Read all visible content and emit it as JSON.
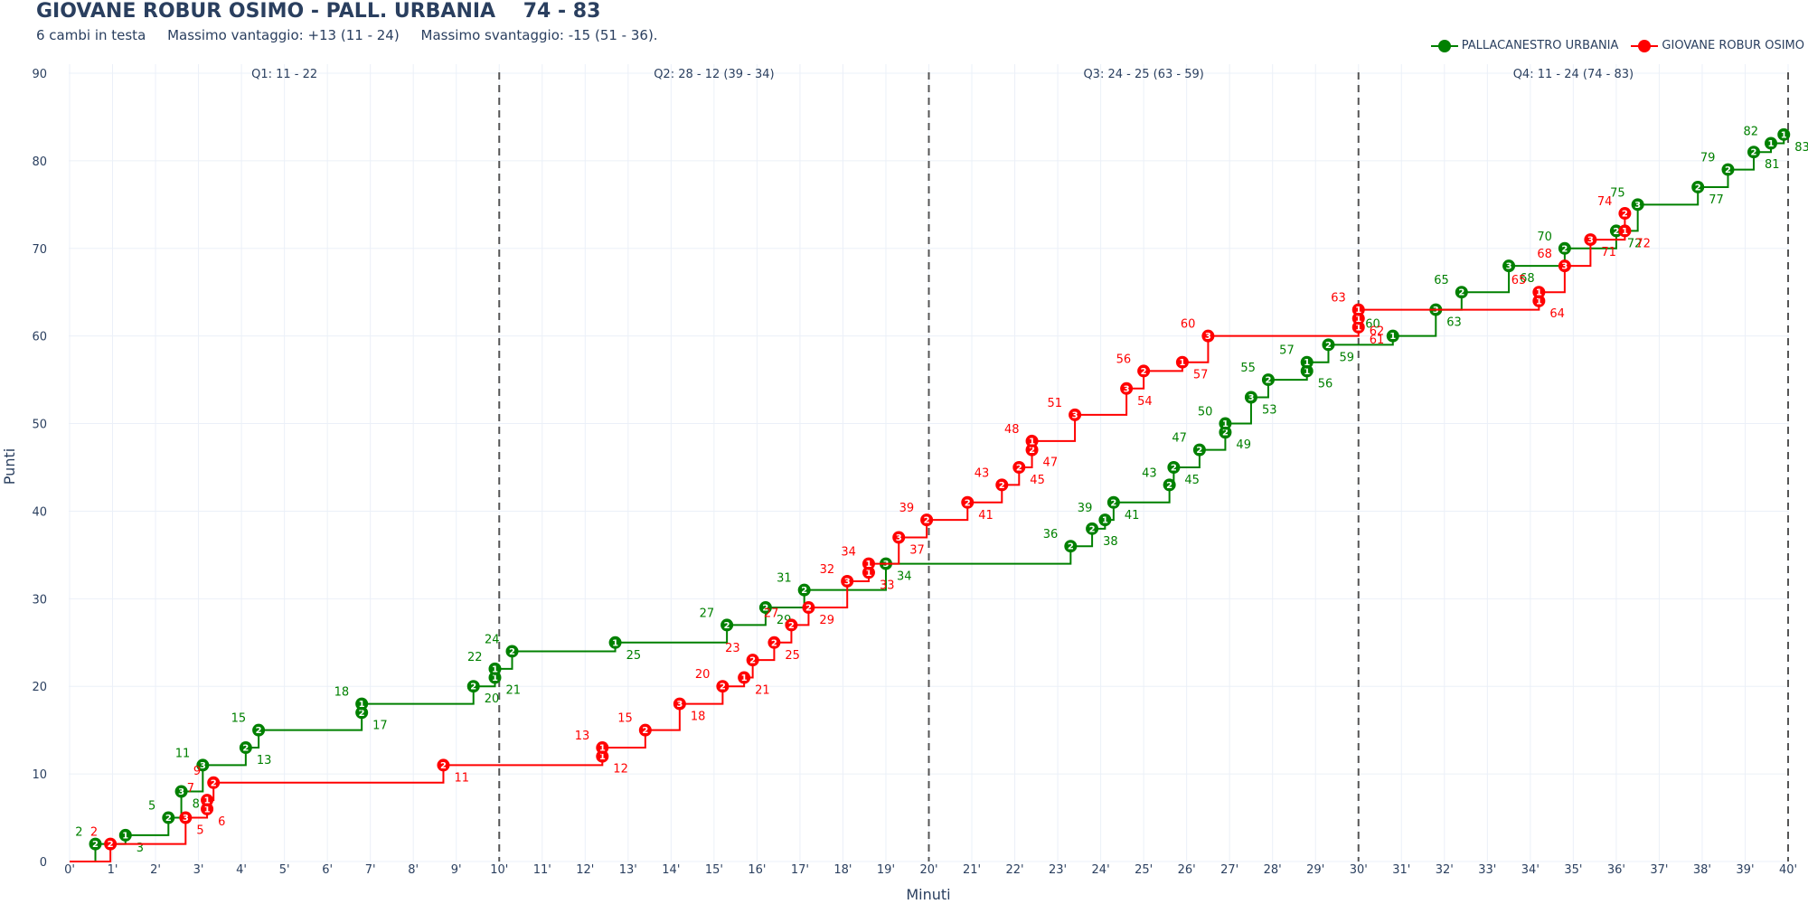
{
  "header": {
    "title": "GIOVANE ROBUR OSIMO - PALL. URBANIA    74 - 83",
    "subtitle": "6 cambi in testa     Massimo vantaggio: +13 (11 - 24)     Massimo svantaggio: -15 (51 - 36)."
  },
  "chart_data": {
    "type": "line",
    "line_shape": "step",
    "xlabel": "Minuti",
    "ylabel": "Punti",
    "xlim": [
      0,
      40
    ],
    "ylim": [
      0,
      90
    ],
    "x_ticks": [
      "0'",
      "1'",
      "2'",
      "3'",
      "4'",
      "5'",
      "6'",
      "7'",
      "8'",
      "9'",
      "10'",
      "11'",
      "12'",
      "13'",
      "14'",
      "15'",
      "16'",
      "17'",
      "18'",
      "19'",
      "20'",
      "21'",
      "22'",
      "23'",
      "24'",
      "25'",
      "26'",
      "27'",
      "28'",
      "29'",
      "30'",
      "31'",
      "32'",
      "33'",
      "34'",
      "35'",
      "36'",
      "37'",
      "38'",
      "39'",
      "40'"
    ],
    "y_ticks": [
      "0",
      "10",
      "20",
      "30",
      "40",
      "50",
      "60",
      "70",
      "80",
      "90"
    ],
    "grid": true,
    "legend_position": "top-right",
    "quarter_dividers": [
      10,
      20,
      30,
      40
    ],
    "quarters": [
      {
        "label": "Q1: 11 - 22",
        "x": 5
      },
      {
        "label": "Q2: 28 - 12 (39 - 34)",
        "x": 15
      },
      {
        "label": "Q3: 24 - 25 (63 - 59)",
        "x": 25
      },
      {
        "label": "Q4: 11 - 24 (74 - 83)",
        "x": 35
      }
    ],
    "series": [
      {
        "name": "PALLACANESTRO URBANIA",
        "color": "#008000",
        "points": [
          {
            "x": 0.6,
            "y": 2,
            "pts": 2
          },
          {
            "x": 1.3,
            "y": 3,
            "pts": 1
          },
          {
            "x": 2.3,
            "y": 5,
            "pts": 2
          },
          {
            "x": 2.6,
            "y": 8,
            "pts": 3
          },
          {
            "x": 3.1,
            "y": 11,
            "pts": 3
          },
          {
            "x": 4.1,
            "y": 13,
            "pts": 2
          },
          {
            "x": 4.4,
            "y": 15,
            "pts": 2
          },
          {
            "x": 6.8,
            "y": 17,
            "pts": 2
          },
          {
            "x": 6.8,
            "y": 18,
            "pts": 1
          },
          {
            "x": 9.4,
            "y": 20,
            "pts": 2
          },
          {
            "x": 9.9,
            "y": 21,
            "pts": 1
          },
          {
            "x": 9.9,
            "y": 22,
            "pts": 1
          },
          {
            "x": 10.3,
            "y": 24,
            "pts": 2
          },
          {
            "x": 12.7,
            "y": 25,
            "pts": 1
          },
          {
            "x": 15.3,
            "y": 27,
            "pts": 2
          },
          {
            "x": 16.2,
            "y": 29,
            "pts": 2
          },
          {
            "x": 17.1,
            "y": 31,
            "pts": 2
          },
          {
            "x": 19.0,
            "y": 34,
            "pts": 3
          },
          {
            "x": 23.3,
            "y": 36,
            "pts": 2
          },
          {
            "x": 23.8,
            "y": 38,
            "pts": 2
          },
          {
            "x": 24.1,
            "y": 39,
            "pts": 1
          },
          {
            "x": 24.3,
            "y": 41,
            "pts": 2
          },
          {
            "x": 25.6,
            "y": 43,
            "pts": 2
          },
          {
            "x": 25.7,
            "y": 45,
            "pts": 2
          },
          {
            "x": 26.3,
            "y": 47,
            "pts": 2
          },
          {
            "x": 26.9,
            "y": 49,
            "pts": 2
          },
          {
            "x": 26.9,
            "y": 50,
            "pts": 1
          },
          {
            "x": 27.5,
            "y": 53,
            "pts": 3
          },
          {
            "x": 27.9,
            "y": 55,
            "pts": 2
          },
          {
            "x": 28.8,
            "y": 56,
            "pts": 1
          },
          {
            "x": 28.8,
            "y": 57,
            "pts": 1
          },
          {
            "x": 29.3,
            "y": 59,
            "pts": 2
          },
          {
            "x": 30.8,
            "y": 60,
            "pts": 1
          },
          {
            "x": 31.8,
            "y": 63,
            "pts": 3
          },
          {
            "x": 32.4,
            "y": 65,
            "pts": 2
          },
          {
            "x": 33.5,
            "y": 68,
            "pts": 3
          },
          {
            "x": 34.8,
            "y": 70,
            "pts": 2
          },
          {
            "x": 36.0,
            "y": 72,
            "pts": 2
          },
          {
            "x": 36.5,
            "y": 75,
            "pts": 3
          },
          {
            "x": 37.9,
            "y": 77,
            "pts": 2
          },
          {
            "x": 38.6,
            "y": 79,
            "pts": 2
          },
          {
            "x": 39.2,
            "y": 81,
            "pts": 2
          },
          {
            "x": 39.6,
            "y": 82,
            "pts": 1
          },
          {
            "x": 39.9,
            "y": 83,
            "pts": 1
          }
        ]
      },
      {
        "name": "GIOVANE ROBUR OSIMO",
        "color": "#ff0000",
        "points": [
          {
            "x": 0.95,
            "y": 2,
            "pts": 2
          },
          {
            "x": 2.7,
            "y": 5,
            "pts": 3
          },
          {
            "x": 3.2,
            "y": 6,
            "pts": 1
          },
          {
            "x": 3.2,
            "y": 7,
            "pts": 1
          },
          {
            "x": 3.35,
            "y": 9,
            "pts": 2
          },
          {
            "x": 8.7,
            "y": 11,
            "pts": 2
          },
          {
            "x": 12.4,
            "y": 12,
            "pts": 1
          },
          {
            "x": 12.4,
            "y": 13,
            "pts": 1
          },
          {
            "x": 13.4,
            "y": 15,
            "pts": 2
          },
          {
            "x": 14.2,
            "y": 18,
            "pts": 3
          },
          {
            "x": 15.2,
            "y": 20,
            "pts": 2
          },
          {
            "x": 15.7,
            "y": 21,
            "pts": 1
          },
          {
            "x": 15.9,
            "y": 23,
            "pts": 2
          },
          {
            "x": 16.4,
            "y": 25,
            "pts": 2
          },
          {
            "x": 16.8,
            "y": 27,
            "pts": 2
          },
          {
            "x": 17.2,
            "y": 29,
            "pts": 2
          },
          {
            "x": 18.1,
            "y": 32,
            "pts": 3
          },
          {
            "x": 18.6,
            "y": 33,
            "pts": 1
          },
          {
            "x": 18.6,
            "y": 34,
            "pts": 1
          },
          {
            "x": 19.3,
            "y": 37,
            "pts": 3
          },
          {
            "x": 19.95,
            "y": 39,
            "pts": 2
          },
          {
            "x": 20.9,
            "y": 41,
            "pts": 2
          },
          {
            "x": 21.7,
            "y": 43,
            "pts": 2
          },
          {
            "x": 22.1,
            "y": 45,
            "pts": 2
          },
          {
            "x": 22.4,
            "y": 47,
            "pts": 2
          },
          {
            "x": 22.4,
            "y": 48,
            "pts": 1
          },
          {
            "x": 23.4,
            "y": 51,
            "pts": 3
          },
          {
            "x": 24.6,
            "y": 54,
            "pts": 3
          },
          {
            "x": 25.0,
            "y": 56,
            "pts": 2
          },
          {
            "x": 25.9,
            "y": 57,
            "pts": 1
          },
          {
            "x": 26.5,
            "y": 60,
            "pts": 3
          },
          {
            "x": 30.0,
            "y": 61,
            "pts": 1
          },
          {
            "x": 30.0,
            "y": 62,
            "pts": 1
          },
          {
            "x": 30.0,
            "y": 63,
            "pts": 1
          },
          {
            "x": 34.2,
            "y": 64,
            "pts": 1
          },
          {
            "x": 34.2,
            "y": 65,
            "pts": 1
          },
          {
            "x": 34.8,
            "y": 68,
            "pts": 3
          },
          {
            "x": 35.4,
            "y": 71,
            "pts": 3
          },
          {
            "x": 36.2,
            "y": 72,
            "pts": 1
          },
          {
            "x": 36.2,
            "y": 74,
            "pts": 2
          }
        ]
      }
    ]
  }
}
